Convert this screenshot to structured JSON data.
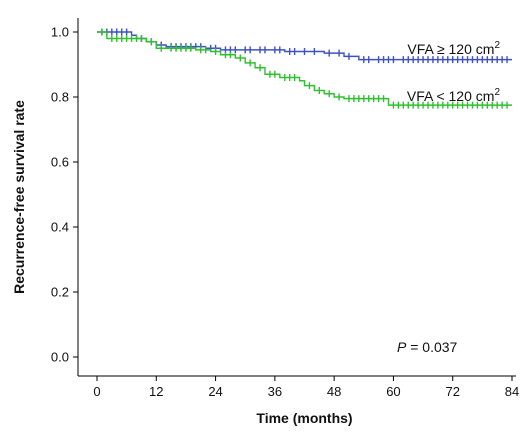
{
  "chart_data": {
    "type": "line",
    "title": "",
    "xlabel": "Time (months)",
    "ylabel": "Recurrence-free survival rate",
    "xlim": [
      0,
      84
    ],
    "ylim": [
      0,
      1.0
    ],
    "x_ticks": [
      0,
      12,
      24,
      36,
      48,
      60,
      72,
      84
    ],
    "y_ticks": [
      0.0,
      0.2,
      0.4,
      0.6,
      0.8,
      1.0
    ],
    "x_tick_labels": [
      "0",
      "12",
      "24",
      "36",
      "48",
      "60",
      "72",
      "84"
    ],
    "y_tick_labels": [
      "0.0",
      "0.2",
      "0.4",
      "0.6",
      "0.8",
      "1.0"
    ],
    "grid": false,
    "series": [
      {
        "name": "VFA ≥ 120 cm²",
        "label_text": "VFA ≥ 120 cm",
        "label_sup": "2",
        "color": "#3f51c4",
        "steps": [
          [
            0,
            1.0
          ],
          [
            7,
            0.99
          ],
          [
            8,
            0.98
          ],
          [
            10,
            0.97
          ],
          [
            12,
            0.96
          ],
          [
            14,
            0.955
          ],
          [
            22,
            0.95
          ],
          [
            25,
            0.945
          ],
          [
            38,
            0.94
          ],
          [
            46,
            0.935
          ],
          [
            50,
            0.925
          ],
          [
            53,
            0.915
          ],
          [
            84,
            0.915
          ]
        ],
        "censored": [
          1,
          2,
          3,
          4,
          5,
          6,
          9,
          11,
          13,
          15,
          16,
          17,
          18,
          19,
          20,
          21,
          23,
          24,
          26,
          27,
          28,
          30,
          31,
          33,
          34,
          36,
          37,
          39,
          40,
          42,
          44,
          47,
          49,
          51,
          54,
          55,
          57,
          58,
          59,
          60,
          62,
          63,
          64,
          65,
          66,
          67,
          68,
          69,
          70,
          71,
          72,
          73,
          74,
          75,
          76,
          77,
          78,
          79,
          80,
          81,
          82,
          83
        ]
      },
      {
        "name": "VFA < 120 cm²",
        "label_text": "VFA < 120 cm",
        "label_sup": "2",
        "color": "#2fc02f",
        "steps": [
          [
            0,
            1.0
          ],
          [
            2,
            0.98
          ],
          [
            10,
            0.97
          ],
          [
            12,
            0.95
          ],
          [
            20,
            0.945
          ],
          [
            23,
            0.94
          ],
          [
            25,
            0.93
          ],
          [
            28,
            0.92
          ],
          [
            30,
            0.905
          ],
          [
            32,
            0.89
          ],
          [
            34,
            0.87
          ],
          [
            37,
            0.86
          ],
          [
            41,
            0.85
          ],
          [
            42,
            0.835
          ],
          [
            44,
            0.82
          ],
          [
            46,
            0.81
          ],
          [
            48,
            0.8
          ],
          [
            50,
            0.795
          ],
          [
            59,
            0.775
          ],
          [
            84,
            0.775
          ]
        ],
        "censored": [
          1,
          3,
          4,
          5,
          6,
          7,
          8,
          9,
          11,
          13,
          15,
          16,
          17,
          18,
          19,
          21,
          22,
          24,
          26,
          27,
          29,
          31,
          33,
          35,
          36,
          38,
          39,
          40,
          43,
          45,
          47,
          49,
          51,
          52,
          53,
          54,
          55,
          56,
          57,
          58,
          60,
          61,
          62,
          63,
          64,
          65,
          66,
          67,
          68,
          69,
          70,
          71,
          72,
          73,
          74,
          75,
          76,
          77,
          78,
          79,
          80,
          81,
          82,
          83
        ]
      }
    ],
    "annotation": {
      "p_label": "P",
      "p_value": " = 0.037"
    }
  }
}
